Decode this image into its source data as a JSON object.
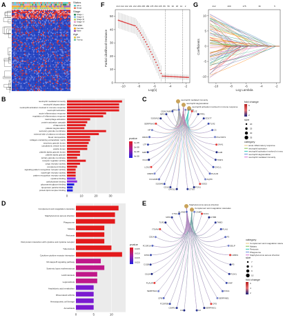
{
  "figure": {
    "panels": {
      "A": {
        "label": "A",
        "legend": {
          "status_title": "Status",
          "status_items": [
            "Alive",
            "Dead"
          ],
          "stage_title": "Stage",
          "stage_items": [
            "Stage I",
            "Stage II",
            "Stage III",
            "Stage IV"
          ],
          "gender_title": "Gender",
          "gender_items": [
            "Female",
            "Male"
          ],
          "age_title": "Age",
          "age_items": [
            "Old",
            "Young"
          ],
          "colors": {
            "alive": "#5fc9c9",
            "dead": "#f07a5a",
            "stage1": "#2e8b57",
            "stage2": "#7fbfe6",
            "stage3": "#b8d86b",
            "stage4": "#e8a0c8",
            "female": "#f5a623",
            "male": "#9b59b6",
            "old": "#e6c34a",
            "young": "#7ac7a5",
            "high": "#d62728",
            "low": "#1f3fbf"
          }
        }
      },
      "F": {
        "label": "F",
        "top_ticks": [
          "213",
          "212",
          "212",
          "211",
          "212",
          "209",
          "205",
          "189",
          "178",
          "159",
          "135",
          "89",
          "56",
          "30",
          "18",
          "12",
          "2"
        ],
        "ylabel": "Partial Likelihood Deviance",
        "xlabel": "Log(λ)",
        "xticks": [
          "-10",
          "-8",
          "-6",
          "-4",
          "-2"
        ],
        "yticks": [
          "0",
          "10",
          "20",
          "30",
          "40",
          "50"
        ]
      },
      "G": {
        "label": "G",
        "top_ticks": [
          "212",
          "209",
          "175",
          "36",
          "5"
        ],
        "ylabel": "Coefficients",
        "xlabel": "Log Lambda",
        "xticks": [
          "-10",
          "-8",
          "-6",
          "-4",
          "-2"
        ],
        "yticks": [
          "-10",
          "-5",
          "0",
          "5",
          "10"
        ]
      },
      "B": {
        "label": "B",
        "terms": [
          "neutrophil mediated immunity",
          "neutrophil degranulation",
          "neutrophil activation involved in immune response",
          "neutrophil activation",
          "acute inflammatory response",
          "regulation of inflammatory response",
          "macrophage activation",
          "protein activation cascade",
          "phagocytosis",
          "platelet degranulation",
          "secretory granule membrane",
          "external side of plasma membrane",
          "blood microparticle",
          "collagen-containing extracellular matrix",
          "secretory granule lumen",
          "cytoplasmic vesicle lumen",
          "vesicle lumen",
          "platelet alpha granule lumen",
          "platelet alpha granule",
          "tertiary granule membrane",
          "receptor regulator activity",
          "cargo receptor activity",
          "complement binding",
          "signaling pattern recognition receptor activity",
          "scavenger receptor activity",
          "pattern recognition receptor activity",
          "cytokine binding",
          "carbohydrate binding",
          "glycosaminoglycan binding",
          "lipoprotein particle binding",
          "protein-lipid complex binding"
        ],
        "values": [
          38,
          36,
          36,
          36,
          27,
          25,
          16,
          14,
          13,
          12,
          27,
          22,
          16,
          16,
          15,
          14,
          14,
          9,
          9,
          7,
          13,
          9,
          7,
          6,
          6,
          6,
          6,
          7,
          5,
          4,
          4
        ],
        "xticks": [
          "0",
          "10",
          "20",
          "30"
        ],
        "legend_title": "pvalue",
        "legend_ticks": [
          "1e-08",
          "2e-08",
          "3e-08",
          "4e-08"
        ]
      },
      "C": {
        "label": "C",
        "top_terms": [
          "neutrophil mediated immunity",
          "neutrophil degranulation",
          "neutrophil activation involved in immune response"
        ],
        "genes": [
          "CHI3L1",
          "CD14",
          "S100A8",
          "FCGR3B",
          "MMP9",
          "LCN2",
          "CXCL8",
          "CAMP",
          "LTF",
          "ORM1",
          "HP",
          "SERPINA3",
          "S100A12",
          "MPO",
          "CEACAM8",
          "ARG1",
          "OLFM4",
          "LYZ",
          "FPR1",
          "CD177",
          "TLR2",
          "C3",
          "PGLYRP1",
          "SAA1",
          "IL1B",
          "TIMP1",
          "CXCL1",
          "PLAUR",
          "AQP9",
          "SOD2",
          "FCN1",
          "CTSG"
        ],
        "legend_fold_title": "fold change",
        "legend_fold_ticks": [
          "6",
          "4",
          "2"
        ],
        "legend_size_title": "size",
        "legend_size_ticks": [
          "20",
          "25",
          "30",
          "35"
        ],
        "legend_category_title": "category",
        "categories": [
          "acute inflammatory response",
          "neutrophil activation",
          "neutrophil activation involved in immune response",
          "neutrophil degranulation",
          "neutrophil mediated immunity"
        ],
        "category_colors": [
          "#e5c07b",
          "#7fbf4f",
          "#2ec4b6",
          "#6a8fd8",
          "#d36fd3"
        ]
      },
      "D": {
        "label": "D",
        "terms": [
          "Complement and coagulation cascades",
          "Staphylococcus aureus infection",
          "Phagosome",
          "Malaria",
          "Pertussis",
          "Viral protein interaction with cytokine and cytokine receptor",
          "Tuberculosis",
          "Cytokine-cytokine receptor interaction",
          "NF-kappa B signaling pathway",
          "Systemic lupus erythematosus",
          "Leishmaniasis",
          "Legionellosis",
          "Arachidonic acid metabolism",
          "Rheumatoid arthritis",
          "Hematopoietic cell lineage",
          "Amoebiasis"
        ],
        "values": [
          12,
          11,
          11,
          8,
          8,
          8,
          10,
          13,
          7,
          8,
          6,
          6,
          5,
          5,
          5,
          5
        ],
        "xticks": [
          "0",
          "5",
          "10"
        ],
        "legend_title": "pvalue",
        "legend_ticks": [
          "0.005",
          "0.010",
          "0.015",
          "0.020"
        ]
      },
      "E": {
        "label": "E",
        "top_terms": [
          "Staphylococcus aureus infection",
          "Complement and coagulation cascades"
        ],
        "genes": [
          "C3",
          "C5AR1",
          "FCGR3B",
          "CFB",
          "SERPINA1",
          "PLAUR",
          "C1QA",
          "C1QB",
          "FPR1",
          "FCGR1A",
          "CD14",
          "ITGAM",
          "TLR2",
          "MPO",
          "CTSG",
          "ELANE",
          "CAMP",
          "NCF1",
          "CYBB",
          "THBD",
          "PLAU",
          "F3",
          "SELP",
          "C4BPA",
          "F5",
          "F13A1",
          "VWF",
          "KNG1",
          "SERPINE1",
          "CFD",
          "SERPING1",
          "C2"
        ],
        "legend_category_title": "category",
        "categories": [
          "Complement and coagulation cascades",
          "Malaria",
          "Pertussis",
          "Phagosome",
          "Staphylococcus aureus infection"
        ],
        "category_colors": [
          "#e5c07b",
          "#7fbf4f",
          "#2ec4b6",
          "#6a8fd8",
          "#d36fd3"
        ],
        "legend_size_title": "size",
        "legend_size_ticks": [
          "7",
          "8",
          "9",
          "10"
        ],
        "legend_fold_title": "fold change",
        "legend_fold_ticks": [
          "6",
          "4",
          "2"
        ]
      }
    }
  }
}
